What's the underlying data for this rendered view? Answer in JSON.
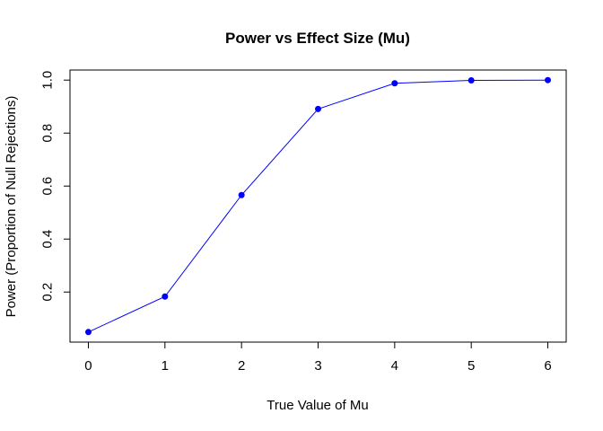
{
  "chart_data": {
    "type": "line",
    "title": "Power vs Effect Size (Mu)",
    "xlabel": "True Value of Mu",
    "ylabel": "Power (Proportion of Null Rejections)",
    "x": [
      0,
      1,
      2,
      3,
      4,
      5,
      6
    ],
    "series": [
      {
        "values": [
          0.049,
          0.183,
          0.566,
          0.891,
          0.988,
          0.999,
          1.0
        ],
        "color": "#0000ff",
        "marker": "filled-circle"
      }
    ],
    "xticks": [
      "0",
      "1",
      "2",
      "3",
      "4",
      "5",
      "6"
    ],
    "yticks": [
      "0.2",
      "0.4",
      "0.6",
      "0.8",
      "1.0"
    ],
    "xlim": [
      -0.24,
      6.24
    ],
    "ylim": [
      0.011,
      1.038
    ],
    "grid": false,
    "legend": "none"
  }
}
